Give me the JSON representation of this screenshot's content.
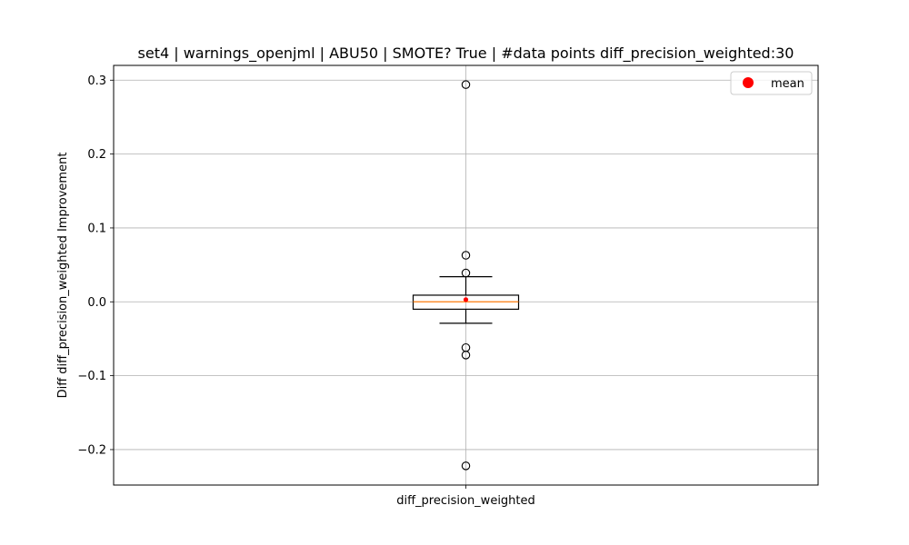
{
  "chart_data": {
    "type": "box",
    "title": "set4 | warnings_openjml | ABU50 | SMOTE? True | #data points diff_precision_weighted:30",
    "xlabel": "",
    "ylabel": "Diff diff_precision_weighted Improvement",
    "categories": [
      "diff_precision_weighted"
    ],
    "ylim": [
      -0.248,
      0.32
    ],
    "yticks": [
      -0.2,
      -0.1,
      0.0,
      0.1,
      0.2,
      0.3
    ],
    "ytick_labels": [
      "−0.2",
      "−0.1",
      "0.0",
      "0.1",
      "0.2",
      "0.3"
    ],
    "grid": true,
    "legend": {
      "placement": "top-right",
      "entries": [
        {
          "label": "mean",
          "color": "#ff0000",
          "marker": "circle"
        }
      ]
    },
    "boxes": [
      {
        "name": "diff_precision_weighted",
        "whisker_low": -0.029,
        "q1": -0.01,
        "median": 0.0,
        "q3": 0.009,
        "whisker_high": 0.034,
        "mean": 0.003,
        "outliers": [
          0.294,
          0.063,
          0.039,
          -0.062,
          -0.072,
          -0.222
        ]
      }
    ],
    "colors": {
      "box": "#000000",
      "median": "#ff7f0e",
      "mean": "#ff0000",
      "grid": "#b0b0b0"
    }
  }
}
